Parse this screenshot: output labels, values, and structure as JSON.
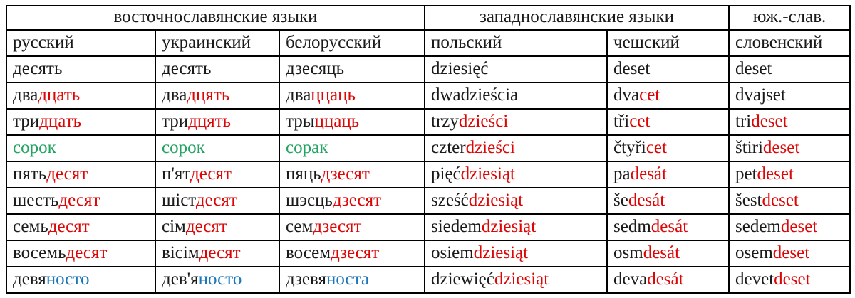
{
  "colors": {
    "black": "#1a1a1a",
    "red": "#dd0606",
    "green": "#23a363",
    "blue": "#1b77bd"
  },
  "table": {
    "groups": [
      {
        "label": "восточнославянские языки",
        "span": 3
      },
      {
        "label": "западнославянские языки",
        "span": 2
      },
      {
        "label": "юж.-слав.",
        "span": 1
      }
    ],
    "languages": [
      "русский",
      "украинский",
      "белорусский",
      "польский",
      "чешский",
      "словенский"
    ],
    "rows": [
      [
        [
          {
            "t": "десять",
            "c": "black"
          }
        ],
        [
          {
            "t": "десять",
            "c": "black"
          }
        ],
        [
          {
            "t": "дзесяць",
            "c": "black"
          }
        ],
        [
          {
            "t": "dziesięć",
            "c": "black"
          }
        ],
        [
          {
            "t": "deset",
            "c": "black"
          }
        ],
        [
          {
            "t": "deset",
            "c": "black"
          }
        ]
      ],
      [
        [
          {
            "t": "два",
            "c": "black"
          },
          {
            "t": "дцать",
            "c": "red"
          }
        ],
        [
          {
            "t": "два",
            "c": "black"
          },
          {
            "t": "дцять",
            "c": "red"
          }
        ],
        [
          {
            "t": "два",
            "c": "black"
          },
          {
            "t": "ццаць",
            "c": "red"
          }
        ],
        [
          {
            "t": "dwadzieścia",
            "c": "black"
          }
        ],
        [
          {
            "t": "dva",
            "c": "black"
          },
          {
            "t": "cet",
            "c": "red"
          }
        ],
        [
          {
            "t": "dvajset",
            "c": "black"
          }
        ]
      ],
      [
        [
          {
            "t": "три",
            "c": "black"
          },
          {
            "t": "дцать",
            "c": "red"
          }
        ],
        [
          {
            "t": "три",
            "c": "black"
          },
          {
            "t": "дцять",
            "c": "red"
          }
        ],
        [
          {
            "t": "тры",
            "c": "black"
          },
          {
            "t": "ццаць",
            "c": "red"
          }
        ],
        [
          {
            "t": "trzy",
            "c": "black"
          },
          {
            "t": "dzieści",
            "c": "red"
          }
        ],
        [
          {
            "t": "tři",
            "c": "black"
          },
          {
            "t": "cet",
            "c": "red"
          }
        ],
        [
          {
            "t": "tri",
            "c": "black"
          },
          {
            "t": "deset",
            "c": "red"
          }
        ]
      ],
      [
        [
          {
            "t": "сорок",
            "c": "green"
          }
        ],
        [
          {
            "t": "сорок",
            "c": "green"
          }
        ],
        [
          {
            "t": "сорак",
            "c": "green"
          }
        ],
        [
          {
            "t": "czter",
            "c": "black"
          },
          {
            "t": "dzieści",
            "c": "red"
          }
        ],
        [
          {
            "t": "čtyři",
            "c": "black"
          },
          {
            "t": "cet",
            "c": "red"
          }
        ],
        [
          {
            "t": "štiri",
            "c": "black"
          },
          {
            "t": "deset",
            "c": "red"
          }
        ]
      ],
      [
        [
          {
            "t": "пять",
            "c": "black"
          },
          {
            "t": "десят",
            "c": "red"
          }
        ],
        [
          {
            "t": "п'ят",
            "c": "black"
          },
          {
            "t": "десят",
            "c": "red"
          }
        ],
        [
          {
            "t": "пяць",
            "c": "black"
          },
          {
            "t": "дзесят",
            "c": "red"
          }
        ],
        [
          {
            "t": "pięć",
            "c": "black"
          },
          {
            "t": "dziesiąt",
            "c": "red"
          }
        ],
        [
          {
            "t": "pa",
            "c": "black"
          },
          {
            "t": "desát",
            "c": "red"
          }
        ],
        [
          {
            "t": "pet",
            "c": "black"
          },
          {
            "t": "deset",
            "c": "red"
          }
        ]
      ],
      [
        [
          {
            "t": "шесть",
            "c": "black"
          },
          {
            "t": "десят",
            "c": "red"
          }
        ],
        [
          {
            "t": "шіст",
            "c": "black"
          },
          {
            "t": "десят",
            "c": "red"
          }
        ],
        [
          {
            "t": "шэсць",
            "c": "black"
          },
          {
            "t": "дзесят",
            "c": "red"
          }
        ],
        [
          {
            "t": "sześć",
            "c": "black"
          },
          {
            "t": "dziesiąt",
            "c": "red"
          }
        ],
        [
          {
            "t": "še",
            "c": "black"
          },
          {
            "t": "desát",
            "c": "red"
          }
        ],
        [
          {
            "t": "šest",
            "c": "black"
          },
          {
            "t": "deset",
            "c": "red"
          }
        ]
      ],
      [
        [
          {
            "t": "семь",
            "c": "black"
          },
          {
            "t": "десят",
            "c": "red"
          }
        ],
        [
          {
            "t": "сім",
            "c": "black"
          },
          {
            "t": "десят",
            "c": "red"
          }
        ],
        [
          {
            "t": "сем",
            "c": "black"
          },
          {
            "t": "дзесят",
            "c": "red"
          }
        ],
        [
          {
            "t": "siedem",
            "c": "black"
          },
          {
            "t": "dziesiąt",
            "c": "red"
          }
        ],
        [
          {
            "t": "sedm",
            "c": "black"
          },
          {
            "t": "desát",
            "c": "red"
          }
        ],
        [
          {
            "t": "sedem",
            "c": "black"
          },
          {
            "t": "deset",
            "c": "red"
          }
        ]
      ],
      [
        [
          {
            "t": "восемь",
            "c": "black"
          },
          {
            "t": "десят",
            "c": "red"
          }
        ],
        [
          {
            "t": "вісім",
            "c": "black"
          },
          {
            "t": "десят",
            "c": "red"
          }
        ],
        [
          {
            "t": "восем",
            "c": "black"
          },
          {
            "t": "дзесят",
            "c": "red"
          }
        ],
        [
          {
            "t": "osiem",
            "c": "black"
          },
          {
            "t": "dziesiąt",
            "c": "red"
          }
        ],
        [
          {
            "t": "osm",
            "c": "black"
          },
          {
            "t": "desát",
            "c": "red"
          }
        ],
        [
          {
            "t": "osem",
            "c": "black"
          },
          {
            "t": "deset",
            "c": "red"
          }
        ]
      ],
      [
        [
          {
            "t": "девя",
            "c": "black"
          },
          {
            "t": "носто",
            "c": "blue"
          }
        ],
        [
          {
            "t": "дев'я",
            "c": "black"
          },
          {
            "t": "носто",
            "c": "blue"
          }
        ],
        [
          {
            "t": "дзевя",
            "c": "black"
          },
          {
            "t": "носта",
            "c": "blue"
          }
        ],
        [
          {
            "t": "dziewięć",
            "c": "black"
          },
          {
            "t": "dziesiąt",
            "c": "red"
          }
        ],
        [
          {
            "t": "deva",
            "c": "black"
          },
          {
            "t": "desát",
            "c": "red"
          }
        ],
        [
          {
            "t": "devet",
            "c": "black"
          },
          {
            "t": "deset",
            "c": "red"
          }
        ]
      ]
    ]
  }
}
